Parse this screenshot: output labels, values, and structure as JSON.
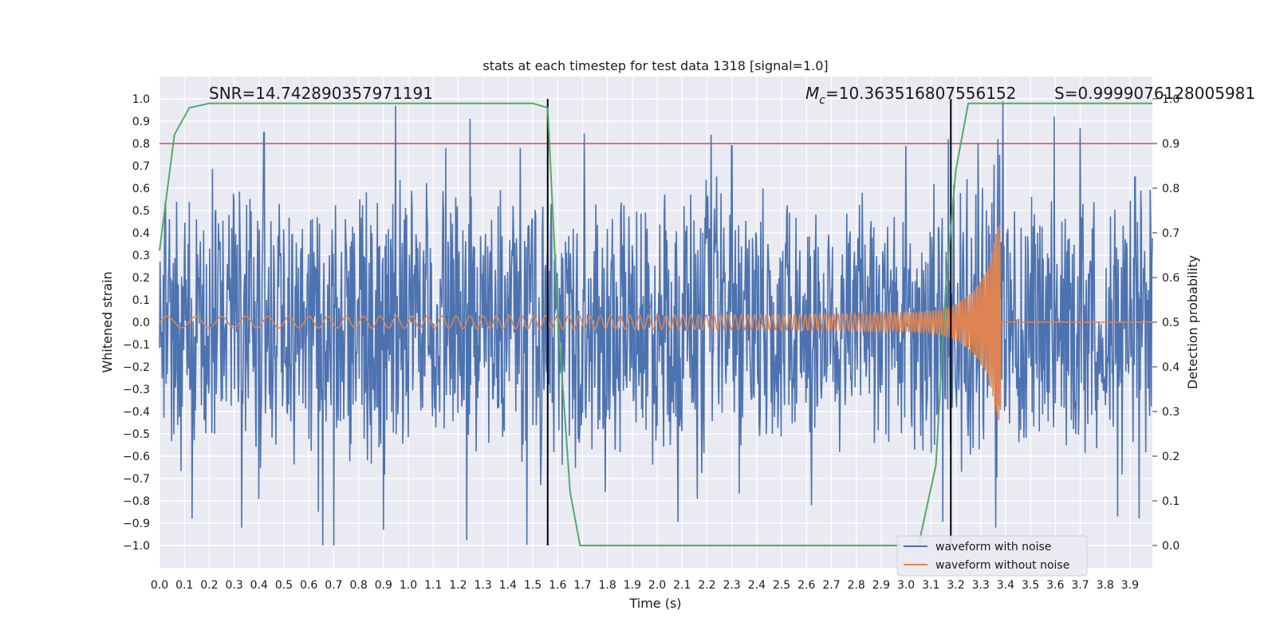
{
  "chart_data": {
    "type": "line",
    "title": "stats at each timestep for test data 1318 [signal=1.0]",
    "xlabel": "Time (s)",
    "ylabel": "Whitened strain",
    "y2label": "Detection probability",
    "xlim": [
      0.0,
      3.99
    ],
    "ylim": [
      -1.1,
      1.1
    ],
    "y2lim": [
      -0.05,
      1.05
    ],
    "xticks": [
      "0.0",
      "0.1",
      "0.2",
      "0.3",
      "0.4",
      "0.5",
      "0.6",
      "0.7",
      "0.8",
      "0.9",
      "1.0",
      "1.1",
      "1.2",
      "1.3",
      "1.4",
      "1.5",
      "1.6",
      "1.7",
      "1.8",
      "1.9",
      "2.0",
      "2.1",
      "2.2",
      "2.3",
      "2.4",
      "2.5",
      "2.6",
      "2.7",
      "2.8",
      "2.9",
      "3.0",
      "3.1",
      "3.2",
      "3.3",
      "3.4",
      "3.5",
      "3.6",
      "3.7",
      "3.8",
      "3.9"
    ],
    "yticks": [
      "1.0",
      "0.9",
      "0.8",
      "0.7",
      "0.6",
      "0.5",
      "0.4",
      "0.3",
      "0.2",
      "0.1",
      "0.0",
      "−0.1",
      "−0.2",
      "−0.3",
      "−0.4",
      "−0.5",
      "−0.6",
      "−0.7",
      "−0.8",
      "−0.9",
      "−1.0"
    ],
    "y2ticks": [
      "1.0",
      "0.9",
      "0.8",
      "0.7",
      "0.6",
      "0.5",
      "0.4",
      "0.3",
      "0.2",
      "0.1",
      "0.0"
    ],
    "annotations": {
      "snr": "SNR=14.742890357971191",
      "mc_symbol": "M",
      "mc_sub": "c",
      "mc_value": "=10.363516807556152",
      "s": "S=0.9999076128005981"
    },
    "threshold": {
      "value": 0.9,
      "axis": "y2",
      "color": "#c44e52"
    },
    "vlines": [
      1.56,
      3.18
    ],
    "series": [
      {
        "name": "waveform with noise",
        "color": "#4c72b0",
        "note": "noise amplitude envelope ~0.55 with spikes",
        "spikes": [
          [
            0.42,
            0.85
          ],
          [
            0.9,
            -0.93
          ],
          [
            0.7,
            -1.0
          ],
          [
            0.33,
            -0.92
          ],
          [
            0.13,
            -0.88
          ],
          [
            1.15,
            0.78
          ],
          [
            1.45,
            0.78
          ],
          [
            2.3,
            0.79
          ],
          [
            2.62,
            -0.82
          ],
          [
            3.0,
            0.79
          ],
          [
            3.36,
            -0.92
          ],
          [
            3.37,
            0.82
          ],
          [
            3.39,
            0.99
          ],
          [
            3.7,
            0.87
          ],
          [
            3.85,
            -0.87
          ],
          [
            3.17,
            0.82
          ],
          [
            3.92,
            0.65
          ]
        ]
      },
      {
        "name": "waveform without noise",
        "color": "#dd8452",
        "chirp": {
          "f0": 8,
          "k": 40,
          "tc": 3.38,
          "amp0": 0.025,
          "amp_peak": 0.44
        }
      },
      {
        "name": "detection probability",
        "color": "#55a868",
        "axis": "y2",
        "x": [
          0.0,
          0.06,
          0.12,
          0.2,
          0.3,
          1.5,
          1.56,
          1.6,
          1.65,
          1.69,
          1.75,
          3.05,
          3.12,
          3.16,
          3.2,
          3.25,
          3.3,
          3.99
        ],
        "y": [
          0.66,
          0.92,
          0.98,
          0.99,
          0.99,
          0.99,
          0.98,
          0.52,
          0.12,
          0.0,
          0.0,
          0.0,
          0.18,
          0.58,
          0.84,
          0.99,
          0.99,
          0.99
        ]
      }
    ],
    "legend": {
      "placement": "bottom-right",
      "entries": [
        "waveform with noise",
        "waveform without noise"
      ]
    }
  }
}
